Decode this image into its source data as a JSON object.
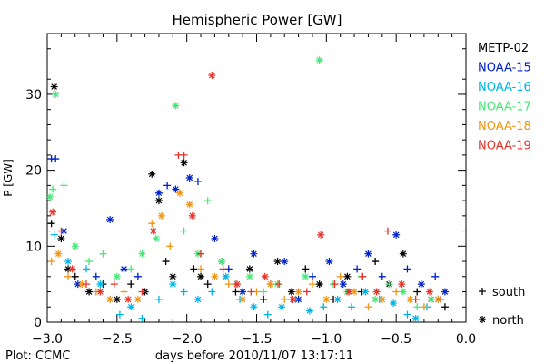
{
  "chart_data": {
    "type": "scatter",
    "title": "Hemispheric Power [GW]",
    "xlabel": "days before 2010/11/07 13:17:11",
    "ylabel": "P [GW]",
    "credit": "Plot: CCMC",
    "xlim": [
      -3.0,
      0.0
    ],
    "ylim": [
      0,
      38
    ],
    "xticks": [
      -3.0,
      -2.5,
      -2.0,
      -1.5,
      -1.0,
      -0.5,
      0.0
    ],
    "xtick_labels": [
      "−3.0",
      "−2.5",
      "−2.0",
      "−1.5",
      "−1.0",
      "−0.5",
      "0.0"
    ],
    "yticks": [
      0,
      10,
      20,
      30
    ],
    "ytick_labels": [
      "0",
      "10",
      "20",
      "30"
    ],
    "grid": false,
    "legend_position": "right",
    "marker_legend": [
      {
        "symbol": "+",
        "label": "south"
      },
      {
        "symbol": "*",
        "label": "north"
      }
    ],
    "series": [
      {
        "name": "METP-02",
        "color": "#000000",
        "points": [
          [
            -2.95,
            31.0,
            "n"
          ],
          [
            -2.97,
            13.0,
            "s"
          ],
          [
            -2.9,
            11.0,
            "n"
          ],
          [
            -2.85,
            7.0,
            "n"
          ],
          [
            -2.8,
            6.0,
            "s"
          ],
          [
            -2.7,
            4.0,
            "n"
          ],
          [
            -2.6,
            5.0,
            "s"
          ],
          [
            -2.5,
            3.0,
            "n"
          ],
          [
            -2.4,
            5.0,
            "s"
          ],
          [
            -2.3,
            4.0,
            "n"
          ],
          [
            -2.25,
            19.5,
            "n"
          ],
          [
            -2.2,
            16.0,
            "n"
          ],
          [
            -2.15,
            8.0,
            "s"
          ],
          [
            -2.1,
            6.0,
            "n"
          ],
          [
            -2.02,
            21.0,
            "n"
          ],
          [
            -1.95,
            7.0,
            "s"
          ],
          [
            -1.9,
            6.0,
            "n"
          ],
          [
            -1.85,
            5.0,
            "s"
          ],
          [
            -1.75,
            8.0,
            "n"
          ],
          [
            -1.65,
            4.0,
            "s"
          ],
          [
            -1.55,
            7.0,
            "n"
          ],
          [
            -1.45,
            3.0,
            "s"
          ],
          [
            -1.35,
            8.0,
            "n"
          ],
          [
            -1.25,
            4.0,
            "n"
          ],
          [
            -1.15,
            7.0,
            "s"
          ],
          [
            -1.05,
            5.0,
            "n"
          ],
          [
            -0.95,
            3.0,
            "s"
          ],
          [
            -0.85,
            6.0,
            "n"
          ],
          [
            -0.75,
            4.0,
            "s"
          ],
          [
            -0.65,
            8.0,
            "s"
          ],
          [
            -0.55,
            5.0,
            "n"
          ],
          [
            -0.45,
            9.0,
            "n"
          ],
          [
            -0.35,
            4.0,
            "s"
          ],
          [
            -0.25,
            3.0,
            "n"
          ],
          [
            -0.15,
            2.0,
            "s"
          ]
        ]
      },
      {
        "name": "NOAA-15",
        "color": "#0020c8",
        "points": [
          [
            -2.97,
            21.5,
            "s"
          ],
          [
            -2.94,
            21.5,
            "s"
          ],
          [
            -2.88,
            12.0,
            "n"
          ],
          [
            -2.78,
            5.0,
            "n"
          ],
          [
            -2.65,
            6.0,
            "s"
          ],
          [
            -2.55,
            13.5,
            "n"
          ],
          [
            -2.45,
            7.0,
            "n"
          ],
          [
            -2.35,
            6.0,
            "s"
          ],
          [
            -2.2,
            17.0,
            "n"
          ],
          [
            -2.14,
            18.0,
            "s"
          ],
          [
            -2.08,
            17.5,
            "n"
          ],
          [
            -1.98,
            19.0,
            "n"
          ],
          [
            -1.92,
            18.5,
            "s"
          ],
          [
            -1.8,
            11.0,
            "n"
          ],
          [
            -1.7,
            7.0,
            "s"
          ],
          [
            -1.6,
            4.0,
            "n"
          ],
          [
            -1.52,
            9.0,
            "n"
          ],
          [
            -1.4,
            5.0,
            "s"
          ],
          [
            -1.3,
            8.0,
            "n"
          ],
          [
            -1.2,
            3.0,
            "n"
          ],
          [
            -1.1,
            6.0,
            "s"
          ],
          [
            -0.98,
            8.0,
            "n"
          ],
          [
            -0.88,
            5.0,
            "n"
          ],
          [
            -0.78,
            7.0,
            "s"
          ],
          [
            -0.7,
            9.0,
            "n"
          ],
          [
            -0.6,
            6.0,
            "s"
          ],
          [
            -0.5,
            11.5,
            "n"
          ],
          [
            -0.42,
            7.0,
            "s"
          ],
          [
            -0.32,
            5.0,
            "n"
          ],
          [
            -0.22,
            6.0,
            "s"
          ],
          [
            -0.15,
            4.0,
            "n"
          ]
        ]
      },
      {
        "name": "NOAA-16",
        "color": "#00b4e6",
        "points": [
          [
            -2.95,
            11.5,
            "s"
          ],
          [
            -2.85,
            8.0,
            "n"
          ],
          [
            -2.72,
            7.0,
            "s"
          ],
          [
            -2.62,
            5.0,
            "n"
          ],
          [
            -2.55,
            3.0,
            "s"
          ],
          [
            -2.48,
            1.0,
            "s"
          ],
          [
            -2.4,
            2.0,
            "n"
          ],
          [
            -2.32,
            0.5,
            "s"
          ],
          [
            -2.2,
            3.0,
            "s"
          ],
          [
            -2.1,
            5.0,
            "n"
          ],
          [
            -2.02,
            4.0,
            "s"
          ],
          [
            -1.92,
            3.0,
            "n"
          ],
          [
            -1.82,
            4.0,
            "s"
          ],
          [
            -1.72,
            6.0,
            "n"
          ],
          [
            -1.62,
            3.0,
            "s"
          ],
          [
            -1.52,
            2.0,
            "n"
          ],
          [
            -1.42,
            1.0,
            "s"
          ],
          [
            -1.32,
            2.0,
            "n"
          ],
          [
            -1.22,
            3.0,
            "s"
          ],
          [
            -1.12,
            1.5,
            "n"
          ],
          [
            -1.02,
            2.0,
            "s"
          ],
          [
            -0.92,
            3.0,
            "n"
          ],
          [
            -0.82,
            2.0,
            "s"
          ],
          [
            -0.72,
            4.0,
            "n"
          ],
          [
            -0.62,
            3.0,
            "s"
          ],
          [
            -0.52,
            2.5,
            "n"
          ],
          [
            -0.42,
            1.0,
            "s"
          ],
          [
            -0.36,
            0.5,
            "n"
          ],
          [
            -0.28,
            2.0,
            "s"
          ],
          [
            -0.2,
            3.0,
            "n"
          ]
        ]
      },
      {
        "name": "NOAA-17",
        "color": "#48e678",
        "points": [
          [
            -2.98,
            16.5,
            "n"
          ],
          [
            -2.96,
            17.5,
            "s"
          ],
          [
            -2.94,
            30.0,
            "n"
          ],
          [
            -2.88,
            18.0,
            "s"
          ],
          [
            -2.8,
            10.0,
            "n"
          ],
          [
            -2.7,
            8.0,
            "s"
          ],
          [
            -2.6,
            9.0,
            "s"
          ],
          [
            -2.5,
            6.0,
            "n"
          ],
          [
            -2.4,
            7.0,
            "s"
          ],
          [
            -2.32,
            9.0,
            "n"
          ],
          [
            -2.22,
            11.0,
            "n"
          ],
          [
            -2.08,
            28.5,
            "n"
          ],
          [
            -2.02,
            12.0,
            "s"
          ],
          [
            -1.92,
            9.0,
            "n"
          ],
          [
            -1.85,
            16.0,
            "s"
          ],
          [
            -1.75,
            8.0,
            "n"
          ],
          [
            -1.65,
            5.0,
            "s"
          ],
          [
            -1.55,
            6.0,
            "n"
          ],
          [
            -1.45,
            4.0,
            "s"
          ],
          [
            -1.35,
            5.0,
            "n"
          ],
          [
            -1.25,
            3.0,
            "s"
          ],
          [
            -1.15,
            6.0,
            "n"
          ],
          [
            -1.05,
            34.5,
            "n"
          ],
          [
            -0.95,
            5.0,
            "s"
          ],
          [
            -0.85,
            4.0,
            "n"
          ],
          [
            -0.75,
            6.0,
            "s"
          ],
          [
            -0.65,
            3.0,
            "n"
          ],
          [
            -0.55,
            5.0,
            "s"
          ],
          [
            -0.45,
            4.0,
            "n"
          ],
          [
            -0.35,
            2.0,
            "s"
          ],
          [
            -0.25,
            3.0,
            "n"
          ]
        ]
      },
      {
        "name": "NOAA-18",
        "color": "#f09614",
        "points": [
          [
            -2.97,
            8.0,
            "s"
          ],
          [
            -2.92,
            9.0,
            "n"
          ],
          [
            -2.85,
            6.0,
            "s"
          ],
          [
            -2.75,
            5.0,
            "n"
          ],
          [
            -2.65,
            4.0,
            "s"
          ],
          [
            -2.55,
            3.0,
            "n"
          ],
          [
            -2.45,
            4.0,
            "s"
          ],
          [
            -2.35,
            3.0,
            "n"
          ],
          [
            -2.25,
            13.0,
            "s"
          ],
          [
            -2.18,
            14.0,
            "n"
          ],
          [
            -2.12,
            10.0,
            "s"
          ],
          [
            -2.05,
            17.0,
            "n"
          ],
          [
            -1.98,
            15.5,
            "n"
          ],
          [
            -1.9,
            7.0,
            "s"
          ],
          [
            -1.8,
            6.0,
            "n"
          ],
          [
            -1.7,
            5.0,
            "s"
          ],
          [
            -1.6,
            3.0,
            "n"
          ],
          [
            -1.5,
            4.0,
            "s"
          ],
          [
            -1.4,
            5.0,
            "n"
          ],
          [
            -1.3,
            3.0,
            "s"
          ],
          [
            -1.2,
            4.0,
            "n"
          ],
          [
            -1.1,
            5.0,
            "s"
          ],
          [
            -1.0,
            3.0,
            "n"
          ],
          [
            -0.9,
            6.0,
            "s"
          ],
          [
            -0.8,
            4.0,
            "n"
          ],
          [
            -0.7,
            2.0,
            "s"
          ],
          [
            -0.6,
            3.0,
            "n"
          ],
          [
            -0.5,
            4.0,
            "s"
          ],
          [
            -0.4,
            3.0,
            "n"
          ],
          [
            -0.3,
            2.0,
            "s"
          ],
          [
            -0.2,
            3.0,
            "n"
          ]
        ]
      },
      {
        "name": "NOAA-19",
        "color": "#e63228",
        "points": [
          [
            -2.96,
            14.5,
            "n"
          ],
          [
            -2.9,
            12.0,
            "s"
          ],
          [
            -2.82,
            7.0,
            "n"
          ],
          [
            -2.72,
            5.0,
            "s"
          ],
          [
            -2.62,
            4.0,
            "n"
          ],
          [
            -2.52,
            5.0,
            "s"
          ],
          [
            -2.42,
            3.0,
            "n"
          ],
          [
            -2.32,
            4.0,
            "s"
          ],
          [
            -2.24,
            12.0,
            "n"
          ],
          [
            -2.06,
            22.0,
            "s"
          ],
          [
            -2.02,
            22.0,
            "s"
          ],
          [
            -1.96,
            14.0,
            "n"
          ],
          [
            -1.9,
            9.0,
            "s"
          ],
          [
            -1.82,
            32.5,
            "n"
          ],
          [
            -1.74,
            7.0,
            "s"
          ],
          [
            -1.64,
            5.0,
            "n"
          ],
          [
            -1.54,
            4.0,
            "s"
          ],
          [
            -1.44,
            6.0,
            "n"
          ],
          [
            -1.34,
            5.0,
            "s"
          ],
          [
            -1.24,
            3.0,
            "n"
          ],
          [
            -1.14,
            4.0,
            "s"
          ],
          [
            -1.04,
            11.5,
            "n"
          ],
          [
            -0.94,
            5.0,
            "s"
          ],
          [
            -0.84,
            4.0,
            "n"
          ],
          [
            -0.74,
            6.0,
            "s"
          ],
          [
            -0.64,
            4.0,
            "n"
          ],
          [
            -0.56,
            12.0,
            "s"
          ],
          [
            -0.46,
            5.0,
            "n"
          ],
          [
            -0.36,
            3.0,
            "s"
          ],
          [
            -0.26,
            4.0,
            "n"
          ],
          [
            -0.18,
            3.0,
            "s"
          ]
        ]
      }
    ]
  }
}
